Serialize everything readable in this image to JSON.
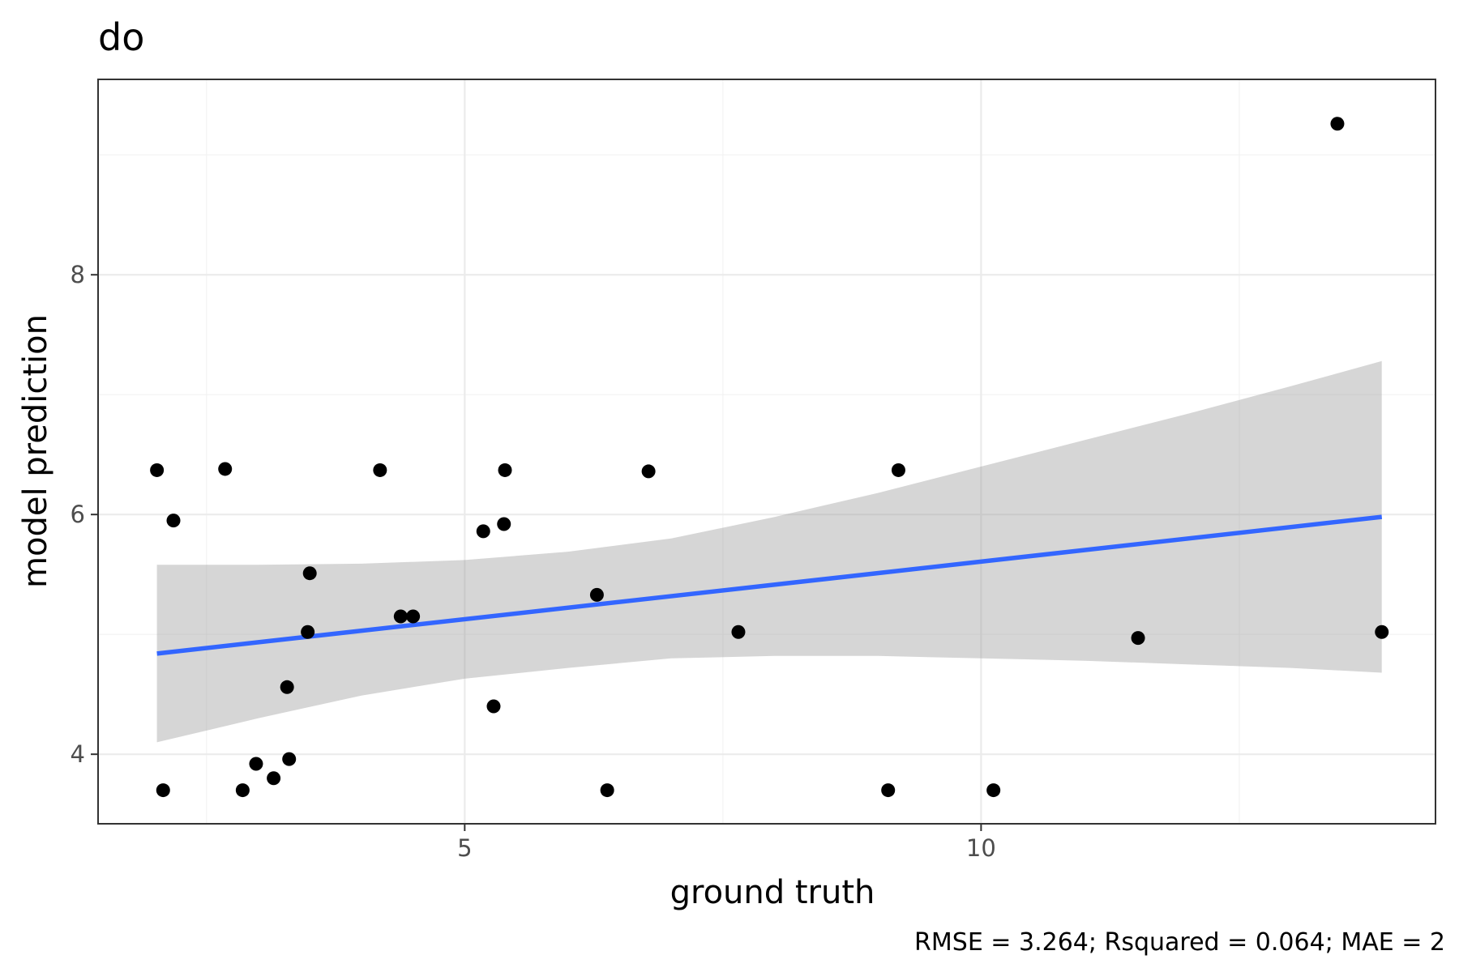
{
  "chart_data": {
    "type": "scatter",
    "title": "do",
    "xlabel": "ground truth",
    "ylabel": "model prediction",
    "caption": "RMSE = 3.264; Rsquared = 0.064; MAE = 2",
    "xlim": [
      1.45,
      14.4
    ],
    "ylim": [
      3.42,
      9.63
    ],
    "x_ticks": [
      5,
      10
    ],
    "y_ticks": [
      4,
      6,
      8
    ],
    "x_minor": [
      2.5,
      7.5,
      12.5
    ],
    "y_minor": [
      5,
      7,
      9
    ],
    "grid": true,
    "colors": {
      "points": "#000000",
      "fit_line": "#3366FF",
      "ribbon": "#999999",
      "panel_border": "#333333"
    },
    "points": [
      {
        "x": 2.02,
        "y": 6.37
      },
      {
        "x": 2.08,
        "y": 3.7
      },
      {
        "x": 2.18,
        "y": 5.95
      },
      {
        "x": 2.68,
        "y": 6.38
      },
      {
        "x": 2.85,
        "y": 3.7
      },
      {
        "x": 2.98,
        "y": 3.92
      },
      {
        "x": 3.15,
        "y": 3.8
      },
      {
        "x": 3.28,
        "y": 4.56
      },
      {
        "x": 3.3,
        "y": 3.96
      },
      {
        "x": 3.48,
        "y": 5.02
      },
      {
        "x": 3.5,
        "y": 5.51
      },
      {
        "x": 4.18,
        "y": 6.37
      },
      {
        "x": 4.38,
        "y": 5.15
      },
      {
        "x": 4.5,
        "y": 5.15
      },
      {
        "x": 5.18,
        "y": 5.86
      },
      {
        "x": 5.28,
        "y": 4.4
      },
      {
        "x": 5.38,
        "y": 5.92
      },
      {
        "x": 5.39,
        "y": 6.37
      },
      {
        "x": 6.28,
        "y": 5.33
      },
      {
        "x": 6.38,
        "y": 3.7
      },
      {
        "x": 6.78,
        "y": 6.36
      },
      {
        "x": 7.65,
        "y": 5.02
      },
      {
        "x": 9.1,
        "y": 3.7
      },
      {
        "x": 9.2,
        "y": 6.37
      },
      {
        "x": 10.12,
        "y": 3.7
      },
      {
        "x": 11.52,
        "y": 4.97
      },
      {
        "x": 13.45,
        "y": 9.26
      },
      {
        "x": 13.88,
        "y": 5.02
      }
    ],
    "fit_line": {
      "x": [
        2.02,
        13.88
      ],
      "y": [
        4.84,
        5.98
      ]
    },
    "ribbon": {
      "x": [
        2.02,
        3.0,
        4.0,
        5.0,
        6.0,
        7.0,
        8.0,
        9.0,
        10.0,
        11.0,
        12.0,
        13.0,
        13.88
      ],
      "upper": [
        5.58,
        5.58,
        5.59,
        5.62,
        5.69,
        5.8,
        5.98,
        6.18,
        6.4,
        6.62,
        6.84,
        7.07,
        7.28
      ],
      "lower": [
        4.1,
        4.3,
        4.49,
        4.63,
        4.72,
        4.8,
        4.82,
        4.82,
        4.8,
        4.78,
        4.75,
        4.72,
        4.68
      ]
    }
  }
}
